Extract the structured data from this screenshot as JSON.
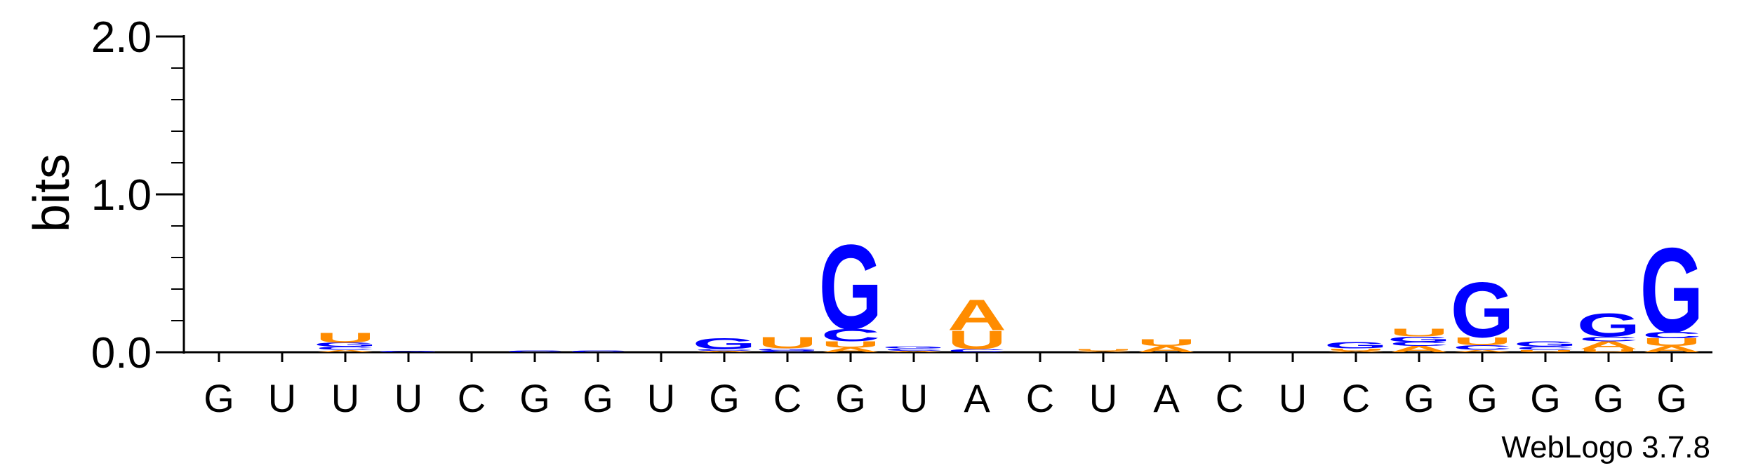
{
  "chart_data": {
    "type": "sequence-logo",
    "ylabel": "bits",
    "ylim": [
      0,
      2.0
    ],
    "yticks": [
      "0.0",
      "1.0",
      "2.0"
    ],
    "sequence": [
      "G",
      "U",
      "U",
      "U",
      "C",
      "G",
      "G",
      "U",
      "G",
      "C",
      "G",
      "U",
      "A",
      "C",
      "U",
      "A",
      "C",
      "U",
      "C",
      "G",
      "G",
      "G",
      "G",
      "G"
    ],
    "colors": {
      "A": "#ff8c00",
      "U": "#ff8c00",
      "G": "#0000ff",
      "C": "#0000ff"
    },
    "columns": [
      [],
      [],
      [
        {
          "letter": "A",
          "bits": 0.015
        },
        {
          "letter": "C",
          "bits": 0.02
        },
        {
          "letter": "G",
          "bits": 0.025
        },
        {
          "letter": "U",
          "bits": 0.065
        }
      ],
      [
        {
          "letter": "G",
          "bits": 0.008
        }
      ],
      [],
      [
        {
          "letter": "C",
          "bits": 0.012
        }
      ],
      [
        {
          "letter": "C",
          "bits": 0.012
        }
      ],
      [],
      [
        {
          "letter": "A",
          "bits": 0.01
        },
        {
          "letter": "C",
          "bits": 0.01
        },
        {
          "letter": "G",
          "bits": 0.07
        }
      ],
      [
        {
          "letter": "C",
          "bits": 0.01
        },
        {
          "letter": "G",
          "bits": 0.015
        },
        {
          "letter": "U",
          "bits": 0.075
        }
      ],
      [
        {
          "letter": "A",
          "bits": 0.03
        },
        {
          "letter": "U",
          "bits": 0.04
        },
        {
          "letter": "C",
          "bits": 0.08
        },
        {
          "letter": "G",
          "bits": 0.55
        }
      ],
      [
        {
          "letter": "A",
          "bits": 0.01
        },
        {
          "letter": "C",
          "bits": 0.015
        },
        {
          "letter": "G",
          "bits": 0.015
        }
      ],
      [
        {
          "letter": "C",
          "bits": 0.02
        },
        {
          "letter": "U",
          "bits": 0.12
        },
        {
          "letter": "A",
          "bits": 0.2
        }
      ],
      [],
      [
        {
          "letter": "A",
          "bits": 0.008
        },
        {
          "letter": "U",
          "bits": 0.012
        }
      ],
      [
        {
          "letter": "A",
          "bits": 0.04
        },
        {
          "letter": "U",
          "bits": 0.045
        }
      ],
      [],
      [],
      [
        {
          "letter": "A",
          "bits": 0.01
        },
        {
          "letter": "U",
          "bits": 0.015
        },
        {
          "letter": "G",
          "bits": 0.04
        }
      ],
      [
        {
          "letter": "A",
          "bits": 0.04
        },
        {
          "letter": "C",
          "bits": 0.025
        },
        {
          "letter": "G",
          "bits": 0.035
        },
        {
          "letter": "U",
          "bits": 0.05
        }
      ],
      [
        {
          "letter": "A",
          "bits": 0.015
        },
        {
          "letter": "C",
          "bits": 0.03
        },
        {
          "letter": "U",
          "bits": 0.05
        },
        {
          "letter": "G",
          "bits": 0.36
        }
      ],
      [
        {
          "letter": "U",
          "bits": 0.015
        },
        {
          "letter": "C",
          "bits": 0.02
        },
        {
          "letter": "G",
          "bits": 0.035
        }
      ],
      [
        {
          "letter": "U",
          "bits": 0.02
        },
        {
          "letter": "A",
          "bits": 0.05
        },
        {
          "letter": "C",
          "bits": 0.03
        },
        {
          "letter": "G",
          "bits": 0.15
        }
      ],
      [
        {
          "letter": "A",
          "bits": 0.04
        },
        {
          "letter": "U",
          "bits": 0.05
        },
        {
          "letter": "C",
          "bits": 0.04
        },
        {
          "letter": "G",
          "bits": 0.55
        }
      ]
    ]
  },
  "credit": "WebLogo 3.7.8"
}
